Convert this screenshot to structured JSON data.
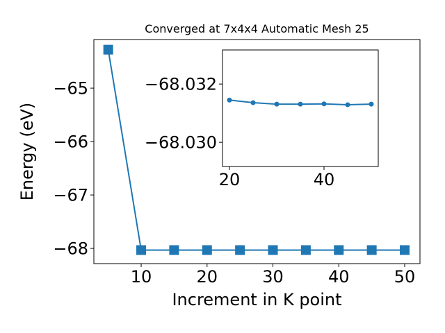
{
  "chart_data": [
    {
      "type": "line",
      "title": "Converged at 7x4x4 Automatic Mesh 25",
      "x_label": "Increment in K point",
      "y_label": "Energy (eV)",
      "x": [
        5,
        10,
        15,
        20,
        25,
        30,
        35,
        40,
        45,
        50
      ],
      "series": [
        {
          "color": "#1f77b4",
          "marker": "square",
          "values": [
            -64.28,
            -68.0315,
            -68.0314,
            -68.0313,
            -68.0313,
            -68.0313,
            -68.0313,
            -68.0313,
            -68.0313,
            -68.0313
          ]
        }
      ],
      "xlim": [
        2.82,
        52.32
      ],
      "ylim": [
        -68.285,
        -64.09
      ],
      "xticks": [
        10,
        20,
        30,
        40,
        50
      ],
      "yticks": [
        {
          "value": -68,
          "label": "−68"
        },
        {
          "value": -67,
          "label": "−67"
        },
        {
          "value": -66,
          "label": "−66"
        },
        {
          "value": -65,
          "label": "−65"
        }
      ]
    },
    {
      "type": "line",
      "x": [
        20,
        25,
        30,
        35,
        40,
        45,
        50
      ],
      "series": [
        {
          "color": "#1f77b4",
          "marker": "circle",
          "values": [
            -68.03145,
            -68.03136,
            -68.03131,
            -68.03131,
            -68.03132,
            -68.03129,
            -68.03131
          ]
        }
      ],
      "xlim": [
        18.53,
        51.47
      ],
      "ylim": [
        -68.02917,
        -68.03317
      ],
      "xticks": [
        20,
        40
      ],
      "yticks": [
        {
          "value": -68.032,
          "label": "−68.032"
        },
        {
          "value": -68.03,
          "label": "−68.030"
        }
      ]
    }
  ]
}
